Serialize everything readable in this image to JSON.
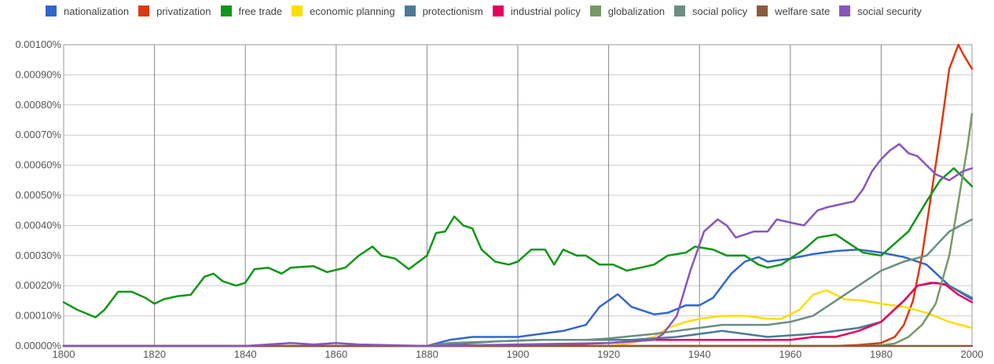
{
  "chart_data": {
    "type": "line",
    "title": "",
    "xlabel": "",
    "ylabel": "",
    "xlim": [
      1800,
      2000
    ],
    "ylim": [
      0,
      0.001
    ],
    "x_ticks": [
      "1800",
      "1820",
      "1840",
      "1860",
      "1880",
      "1900",
      "1920",
      "1940",
      "1960",
      "1980",
      "2000"
    ],
    "y_ticks": [
      "0.00000%",
      "0.00010%",
      "0.00020%",
      "0.00030%",
      "0.00040%",
      "0.00050%",
      "0.00060%",
      "0.00070%",
      "0.00080%",
      "0.00090%",
      "0.00100%"
    ],
    "grid": true,
    "legend_position": "top",
    "series": [
      {
        "name": "nationalization",
        "color": "#3366cc",
        "points": [
          [
            1800,
            0
          ],
          [
            1880,
            0
          ],
          [
            1885,
            2e-05
          ],
          [
            1890,
            3e-05
          ],
          [
            1900,
            3e-05
          ],
          [
            1905,
            4e-05
          ],
          [
            1910,
            5e-05
          ],
          [
            1915,
            7e-05
          ],
          [
            1918,
            0.00013
          ],
          [
            1922,
            0.000172
          ],
          [
            1925,
            0.00013
          ],
          [
            1930,
            0.000105
          ],
          [
            1933,
            0.00011
          ],
          [
            1937,
            0.000135
          ],
          [
            1940,
            0.000135
          ],
          [
            1943,
            0.00016
          ],
          [
            1947,
            0.00024
          ],
          [
            1950,
            0.00028
          ],
          [
            1953,
            0.000295
          ],
          [
            1955,
            0.00028
          ],
          [
            1960,
            0.00029
          ],
          [
            1965,
            0.000305
          ],
          [
            1970,
            0.000315
          ],
          [
            1975,
            0.00032
          ],
          [
            1980,
            0.00031
          ],
          [
            1985,
            0.000295
          ],
          [
            1990,
            0.00027
          ],
          [
            1995,
            0.0002
          ],
          [
            2000,
            0.000155
          ]
        ]
      },
      {
        "name": "privatization",
        "color": "#dc3912",
        "points": [
          [
            1800,
            0
          ],
          [
            1970,
            0
          ],
          [
            1975,
            3e-06
          ],
          [
            1980,
            1e-05
          ],
          [
            1983,
            3e-05
          ],
          [
            1985,
            7e-05
          ],
          [
            1987,
            0.00015
          ],
          [
            1989,
            0.0003
          ],
          [
            1991,
            0.0005
          ],
          [
            1993,
            0.0007
          ],
          [
            1995,
            0.00092
          ],
          [
            1997,
            0.001
          ],
          [
            1998,
            0.00097
          ],
          [
            2000,
            0.00092
          ]
        ]
      },
      {
        "name": "free trade",
        "color": "#109618",
        "points": [
          [
            1800,
            0.000145
          ],
          [
            1803,
            0.00012
          ],
          [
            1807,
            9.5e-05
          ],
          [
            1809,
            0.00012
          ],
          [
            1812,
            0.00018
          ],
          [
            1815,
            0.00018
          ],
          [
            1818,
            0.00016
          ],
          [
            1820,
            0.00014
          ],
          [
            1822,
            0.000155
          ],
          [
            1825,
            0.000165
          ],
          [
            1828,
            0.00017
          ],
          [
            1831,
            0.00023
          ],
          [
            1833,
            0.00024
          ],
          [
            1835,
            0.000215
          ],
          [
            1838,
            0.0002
          ],
          [
            1840,
            0.00021
          ],
          [
            1842,
            0.000255
          ],
          [
            1845,
            0.00026
          ],
          [
            1848,
            0.00024
          ],
          [
            1850,
            0.00026
          ],
          [
            1855,
            0.000265
          ],
          [
            1858,
            0.000245
          ],
          [
            1862,
            0.00026
          ],
          [
            1865,
            0.0003
          ],
          [
            1868,
            0.00033
          ],
          [
            1870,
            0.0003
          ],
          [
            1873,
            0.00029
          ],
          [
            1876,
            0.000255
          ],
          [
            1880,
            0.0003
          ],
          [
            1882,
            0.000375
          ],
          [
            1884,
            0.00038
          ],
          [
            1886,
            0.00043
          ],
          [
            1888,
            0.0004
          ],
          [
            1890,
            0.00039
          ],
          [
            1892,
            0.00032
          ],
          [
            1895,
            0.00028
          ],
          [
            1898,
            0.00027
          ],
          [
            1900,
            0.00028
          ],
          [
            1903,
            0.00032
          ],
          [
            1906,
            0.00032
          ],
          [
            1908,
            0.00027
          ],
          [
            1910,
            0.00032
          ],
          [
            1913,
            0.0003
          ],
          [
            1915,
            0.0003
          ],
          [
            1918,
            0.00027
          ],
          [
            1921,
            0.00027
          ],
          [
            1924,
            0.00025
          ],
          [
            1927,
            0.00026
          ],
          [
            1930,
            0.00027
          ],
          [
            1933,
            0.0003
          ],
          [
            1937,
            0.00031
          ],
          [
            1939,
            0.00033
          ],
          [
            1943,
            0.00032
          ],
          [
            1946,
            0.0003
          ],
          [
            1950,
            0.0003
          ],
          [
            1953,
            0.00027
          ],
          [
            1955,
            0.00026
          ],
          [
            1958,
            0.00027
          ],
          [
            1960,
            0.00029
          ],
          [
            1963,
            0.00032
          ],
          [
            1966,
            0.00036
          ],
          [
            1970,
            0.00037
          ],
          [
            1973,
            0.00034
          ],
          [
            1976,
            0.00031
          ],
          [
            1980,
            0.0003
          ],
          [
            1983,
            0.00034
          ],
          [
            1986,
            0.00038
          ],
          [
            1990,
            0.00048
          ],
          [
            1993,
            0.00055
          ],
          [
            1996,
            0.00059
          ],
          [
            1998,
            0.00056
          ],
          [
            2000,
            0.00053
          ]
        ]
      },
      {
        "name": "economic planning",
        "color": "#ffdd00",
        "points": [
          [
            1800,
            0
          ],
          [
            1920,
            0
          ],
          [
            1925,
            1e-05
          ],
          [
            1930,
            3e-05
          ],
          [
            1933,
            6e-05
          ],
          [
            1937,
            8e-05
          ],
          [
            1940,
            9e-05
          ],
          [
            1945,
            0.0001
          ],
          [
            1950,
            0.0001
          ],
          [
            1955,
            9e-05
          ],
          [
            1958,
            9e-05
          ],
          [
            1962,
            0.00012
          ],
          [
            1965,
            0.00017
          ],
          [
            1968,
            0.000185
          ],
          [
            1972,
            0.000155
          ],
          [
            1976,
            0.00015
          ],
          [
            1980,
            0.00014
          ],
          [
            1985,
            0.00013
          ],
          [
            1990,
            0.00011
          ],
          [
            1995,
            8e-05
          ],
          [
            2000,
            6e-05
          ]
        ]
      },
      {
        "name": "protectionism",
        "color": "#4c7a99",
        "points": [
          [
            1800,
            0
          ],
          [
            1880,
            0
          ],
          [
            1885,
            5e-06
          ],
          [
            1895,
            1.5e-05
          ],
          [
            1905,
            2e-05
          ],
          [
            1915,
            2e-05
          ],
          [
            1925,
            2e-05
          ],
          [
            1935,
            3e-05
          ],
          [
            1945,
            5e-05
          ],
          [
            1955,
            3e-05
          ],
          [
            1965,
            4e-05
          ],
          [
            1975,
            6e-05
          ],
          [
            1980,
            8e-05
          ],
          [
            1985,
            0.00015
          ],
          [
            1988,
            0.0002
          ],
          [
            1992,
            0.00021
          ],
          [
            1995,
            0.0002
          ],
          [
            2000,
            0.00016
          ]
        ]
      },
      {
        "name": "industrial policy",
        "color": "#e6005c",
        "points": [
          [
            1800,
            0
          ],
          [
            1900,
            0
          ],
          [
            1910,
            5e-06
          ],
          [
            1920,
            1e-05
          ],
          [
            1930,
            2e-05
          ],
          [
            1940,
            2e-05
          ],
          [
            1950,
            2e-05
          ],
          [
            1960,
            2e-05
          ],
          [
            1965,
            3e-05
          ],
          [
            1970,
            3e-05
          ],
          [
            1975,
            5e-05
          ],
          [
            1980,
            8e-05
          ],
          [
            1985,
            0.00015
          ],
          [
            1988,
            0.0002
          ],
          [
            1991,
            0.00021
          ],
          [
            1994,
            0.000205
          ],
          [
            1997,
            0.00017
          ],
          [
            2000,
            0.000145
          ]
        ]
      },
      {
        "name": "globalization",
        "color": "#779966",
        "points": [
          [
            1800,
            0
          ],
          [
            1975,
            0
          ],
          [
            1980,
            2e-06
          ],
          [
            1983,
            8e-06
          ],
          [
            1986,
            3e-05
          ],
          [
            1989,
            7e-05
          ],
          [
            1992,
            0.00014
          ],
          [
            1995,
            0.0003
          ],
          [
            1997,
            0.00048
          ],
          [
            1999,
            0.00066
          ],
          [
            2000,
            0.00077
          ]
        ]
      },
      {
        "name": "social policy",
        "color": "#6b8e83",
        "points": [
          [
            1800,
            0
          ],
          [
            1880,
            0
          ],
          [
            1885,
            1e-05
          ],
          [
            1895,
            1.5e-05
          ],
          [
            1905,
            2e-05
          ],
          [
            1915,
            2e-05
          ],
          [
            1920,
            2.5e-05
          ],
          [
            1930,
            4e-05
          ],
          [
            1940,
            6e-05
          ],
          [
            1945,
            7e-05
          ],
          [
            1950,
            7e-05
          ],
          [
            1955,
            7e-05
          ],
          [
            1960,
            8e-05
          ],
          [
            1965,
            0.0001
          ],
          [
            1970,
            0.00015
          ],
          [
            1975,
            0.0002
          ],
          [
            1980,
            0.00025
          ],
          [
            1985,
            0.00028
          ],
          [
            1990,
            0.0003
          ],
          [
            1995,
            0.00038
          ],
          [
            2000,
            0.00042
          ]
        ]
      },
      {
        "name": "welfare sate",
        "color": "#8b5a3c",
        "points": [
          [
            1800,
            0
          ],
          [
            2000,
            0
          ]
        ]
      },
      {
        "name": "social security",
        "color": "#8855bb",
        "points": [
          [
            1800,
            0
          ],
          [
            1840,
            0
          ],
          [
            1845,
            5e-06
          ],
          [
            1850,
            1e-05
          ],
          [
            1855,
            5e-06
          ],
          [
            1860,
            1e-05
          ],
          [
            1865,
            5e-06
          ],
          [
            1880,
            0
          ],
          [
            1900,
            5e-06
          ],
          [
            1920,
            1e-05
          ],
          [
            1930,
            2e-05
          ],
          [
            1932,
            4e-05
          ],
          [
            1935,
            0.0001
          ],
          [
            1938,
            0.00025
          ],
          [
            1941,
            0.00038
          ],
          [
            1944,
            0.00042
          ],
          [
            1946,
            0.0004
          ],
          [
            1948,
            0.00036
          ],
          [
            1950,
            0.00037
          ],
          [
            1952,
            0.00038
          ],
          [
            1955,
            0.00038
          ],
          [
            1957,
            0.00042
          ],
          [
            1960,
            0.00041
          ],
          [
            1963,
            0.0004
          ],
          [
            1966,
            0.00045
          ],
          [
            1968,
            0.00046
          ],
          [
            1971,
            0.00047
          ],
          [
            1974,
            0.00048
          ],
          [
            1976,
            0.00052
          ],
          [
            1978,
            0.00058
          ],
          [
            1980,
            0.00062
          ],
          [
            1982,
            0.00065
          ],
          [
            1984,
            0.00067
          ],
          [
            1986,
            0.00064
          ],
          [
            1988,
            0.00063
          ],
          [
            1990,
            0.0006
          ],
          [
            1992,
            0.00057
          ],
          [
            1995,
            0.00055
          ],
          [
            1998,
            0.00058
          ],
          [
            2000,
            0.00059
          ]
        ]
      }
    ]
  }
}
